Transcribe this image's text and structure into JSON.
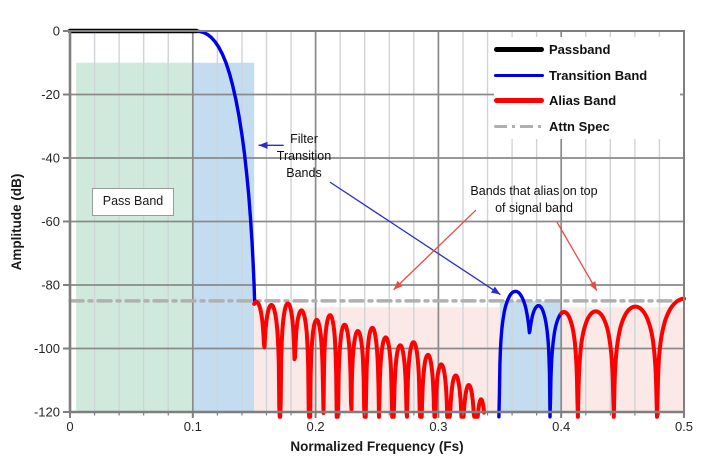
{
  "chart_data": {
    "type": "line",
    "title": "",
    "xlabel": "Normalized Frequency (Fs)",
    "ylabel": "Amplitude (dB)",
    "xlim": [
      0,
      0.5
    ],
    "ylim": [
      -120,
      0
    ],
    "x_ticks": [
      "0",
      "0.1",
      "0.2",
      "0.3",
      "0.4",
      "0.5"
    ],
    "y_ticks": [
      "0",
      "-20",
      "-40",
      "-60",
      "-80",
      "-100",
      "-120"
    ],
    "x_major_step": 0.1,
    "x_minor_step": 0.02,
    "y_major_step": 20,
    "grid": {
      "major_color": "#8a8a8a",
      "minor_color": "#d0d4d8",
      "border_color": "#7f7f7f"
    },
    "attn_spec_db": -85,
    "legend": [
      {
        "label": "Passband",
        "color": "#000000",
        "style": "solid"
      },
      {
        "label": "Transition Band",
        "color": "#0000e6",
        "style": "solid"
      },
      {
        "label": "Alias Band",
        "color": "#fe0000",
        "style": "solid"
      },
      {
        "label": "Attn Spec",
        "color": "#b0b0b0",
        "style": "dashdot"
      }
    ],
    "regions": [
      {
        "name": "pass-band",
        "x0": 0.005,
        "x1": 0.1,
        "top_db": -10,
        "bottom_db": -120,
        "color": "#cfeadd",
        "label": "Pass Band"
      },
      {
        "name": "transition-band",
        "x0": 0.1,
        "x1": 0.15,
        "top_db": -10,
        "bottom_db": -120,
        "color": "#c4dcef",
        "label": ""
      },
      {
        "name": "alias-band-1",
        "x0": 0.15,
        "x1": 0.35,
        "top_db": -87,
        "bottom_db": -120,
        "color": "#fbe9e7",
        "label": ""
      },
      {
        "name": "alias-on-signal-band",
        "x0": 0.35,
        "x1": 0.4,
        "top_db": -85,
        "bottom_db": -120,
        "color": "#c4dcef",
        "label": ""
      },
      {
        "name": "alias-band-2",
        "x0": 0.4,
        "x1": 0.5,
        "top_db": -87,
        "bottom_db": -120,
        "color": "#fbe9e7",
        "label": ""
      }
    ],
    "series": {
      "passband": {
        "label": "Passband",
        "color": "#000000",
        "width": 4.5,
        "points": [
          [
            0,
            0
          ],
          [
            0.103,
            0
          ]
        ]
      },
      "transition": {
        "label": "Transition Band",
        "color": "#0000e6",
        "width": 3.4,
        "points": [
          [
            0.1,
            0
          ],
          [
            0.103,
            -0.05
          ],
          [
            0.106,
            -0.2
          ],
          [
            0.109,
            -0.5
          ],
          [
            0.112,
            -1.1
          ],
          [
            0.115,
            -2.0
          ],
          [
            0.118,
            -3.3
          ],
          [
            0.121,
            -5.0
          ],
          [
            0.124,
            -7.2
          ],
          [
            0.127,
            -10.0
          ],
          [
            0.13,
            -13.5
          ],
          [
            0.1325,
            -17.2
          ],
          [
            0.135,
            -21.5
          ],
          [
            0.1375,
            -26.6
          ],
          [
            0.14,
            -32.6
          ],
          [
            0.142,
            -38.4
          ],
          [
            0.144,
            -45.4
          ],
          [
            0.1455,
            -51.6
          ],
          [
            0.147,
            -59.0
          ],
          [
            0.1482,
            -66.2
          ],
          [
            0.1492,
            -73.5
          ],
          [
            0.1499,
            -80.0
          ],
          [
            0.1503,
            -85.0
          ]
        ]
      },
      "alias_band_1": {
        "label": "Alias Band",
        "color": "#fe0000",
        "width": 4.0,
        "draw_range": [
          0.15,
          0.3375
        ],
        "lobes": [
          [
            0.1445,
            0.159,
            -85.3
          ],
          [
            0.1575,
            0.1705,
            -86.3
          ],
          [
            0.1715,
            0.1833,
            -85.8
          ],
          [
            0.1825,
            0.1945,
            -88.0
          ],
          [
            0.1955,
            0.2063,
            -91.0
          ],
          [
            0.2063,
            0.2172,
            -89.5
          ],
          [
            0.2182,
            0.229,
            -92.5
          ],
          [
            0.229,
            0.2398,
            -94.5
          ],
          [
            0.2408,
            0.2516,
            -93.5
          ],
          [
            0.2516,
            0.2625,
            -96.5
          ],
          [
            0.2635,
            0.2743,
            -99.0
          ],
          [
            0.2743,
            0.2851,
            -98.0
          ],
          [
            0.2861,
            0.2969,
            -102.0
          ],
          [
            0.2969,
            0.3077,
            -105.0
          ],
          [
            0.3087,
            0.3195,
            -108.5
          ],
          [
            0.3195,
            0.33,
            -111.5
          ],
          [
            0.3305,
            0.339,
            -116.0
          ]
        ]
      },
      "signal_alias_band": {
        "label": "Transition Band",
        "color": "#0000e6",
        "width": 3.4,
        "draw_range": [
          0.3493,
          0.4
        ],
        "lobes": [
          [
            0.3495,
            0.376,
            -82.0
          ],
          [
            0.372,
            0.391,
            -86.5
          ],
          [
            0.391,
            0.4135,
            -88.5
          ]
        ]
      },
      "alias_band_2": {
        "label": "Alias Band",
        "color": "#fe0000",
        "width": 4.0,
        "draw_range": [
          0.4,
          0.5
        ],
        "lobes": [
          [
            0.391,
            0.4135,
            -88.5
          ],
          [
            0.4135,
            0.4428,
            -88.3
          ],
          [
            0.4428,
            0.478,
            -86.8
          ],
          [
            0.478,
            0.523,
            -84.3
          ]
        ]
      }
    },
    "annotations": {
      "transition_note": {
        "lines": [
          "Filter",
          "Transition",
          "Bands"
        ]
      },
      "alias_note": {
        "lines": [
          "Bands that alias on top",
          "of signal band"
        ]
      },
      "pass_band_label": "Pass Band",
      "arrows": [
        {
          "name": "transition-arrow-left",
          "color": "#2b2bd4",
          "from": [
            0.174,
            -36.0
          ],
          "to": [
            0.1535,
            -36.0
          ]
        },
        {
          "name": "transition-arrow-right",
          "color": "#2b2bd4",
          "from": [
            0.2117,
            -47.6
          ],
          "to": [
            0.3505,
            -83.0
          ]
        },
        {
          "name": "alias-arrow-left",
          "color": "#e94b44",
          "from": [
            0.3306,
            -56.4
          ],
          "to": [
            0.2635,
            -81.5
          ]
        },
        {
          "name": "alias-arrow-right",
          "color": "#e94b44",
          "from": [
            0.3966,
            -60.2
          ],
          "to": [
            0.429,
            -81.8
          ]
        }
      ]
    }
  }
}
